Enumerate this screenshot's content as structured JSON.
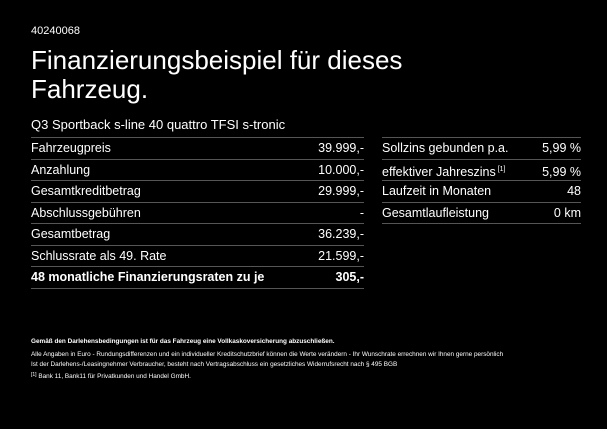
{
  "header": {
    "reference": "40240068",
    "title": "Finanzierungsbeispiel für dieses Fahrzeug.",
    "model": "Q3 Sportback s-line 40 quattro TFSI s-tronic"
  },
  "left_table": {
    "rows": [
      {
        "label": "Fahrzeugpreis",
        "value": "39.999,-"
      },
      {
        "label": "Anzahlung",
        "value": "10.000,-"
      },
      {
        "label": "Gesamtkreditbetrag",
        "value": "29.999,-"
      },
      {
        "label": "Abschlussgebühren",
        "value": "-"
      },
      {
        "label": "Gesamtbetrag",
        "value": "36.239,-"
      },
      {
        "label": "Schlussrate als 49. Rate",
        "value": "21.599,-"
      },
      {
        "label": "48 monatliche Finanzierungsraten zu je",
        "value": "305,-"
      }
    ]
  },
  "right_table": {
    "rows": [
      {
        "label": "Sollzins gebunden p.a.",
        "value": "5,99 %",
        "footnote": ""
      },
      {
        "label": "effektiver Jahreszins",
        "value": "5,99 %",
        "footnote": "[1]"
      },
      {
        "label": "Laufzeit in Monaten",
        "value": "48",
        "footnote": ""
      },
      {
        "label": "Gesamtlaufleistung",
        "value": "0 km",
        "footnote": ""
      }
    ]
  },
  "notes": {
    "insurance": "Gemäß den Darlehensbedingungen ist für das Fahrzeug eine Vollkaskoversicherung abzuschließen.",
    "disclaimer_line1": "Alle Angaben in Euro - Rundungsdifferenzen und ein individueller Kreditschutzbrief können die Werte verändern - Ihr Wunschrate errechnen wir Ihnen gerne persönlich",
    "disclaimer_line2": "Ist der Darlehens-/Leasingnehmer Verbraucher, besteht nach Vertragsabschluss ein gesetzliches Widerrufsrecht nach § 495 BGB",
    "footnote_marker": "[1]",
    "footnote_text": "Bank 11, Bank11 für Privatkunden und Handel GmbH."
  }
}
